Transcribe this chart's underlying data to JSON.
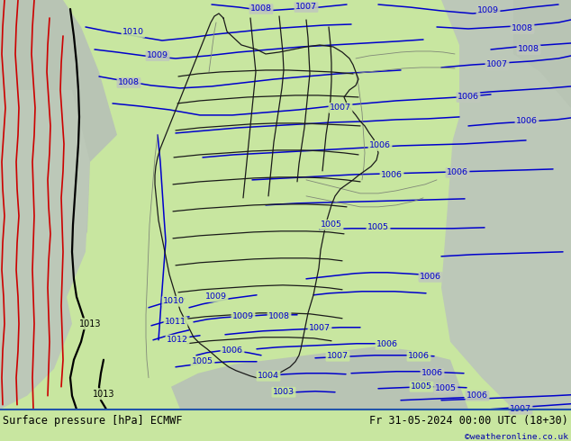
{
  "title_left": "Surface pressure [hPa] ECMWF",
  "title_right": "Fr 31-05-2024 00:00 UTC (18+30)",
  "copyright": "©weatheronline.co.uk",
  "green": "#c8e6a0",
  "gray": "#c0c8bc",
  "gray_dark": "#b0bab0",
  "blue": "#0000cc",
  "red": "#cc0000",
  "black": "#000000",
  "border_dark": "#303030",
  "border_gray": "#808878",
  "footer_bg": "#5599dd",
  "footer_line": "#2255aa",
  "fig_width": 6.34,
  "fig_height": 4.9,
  "dpi": 100
}
